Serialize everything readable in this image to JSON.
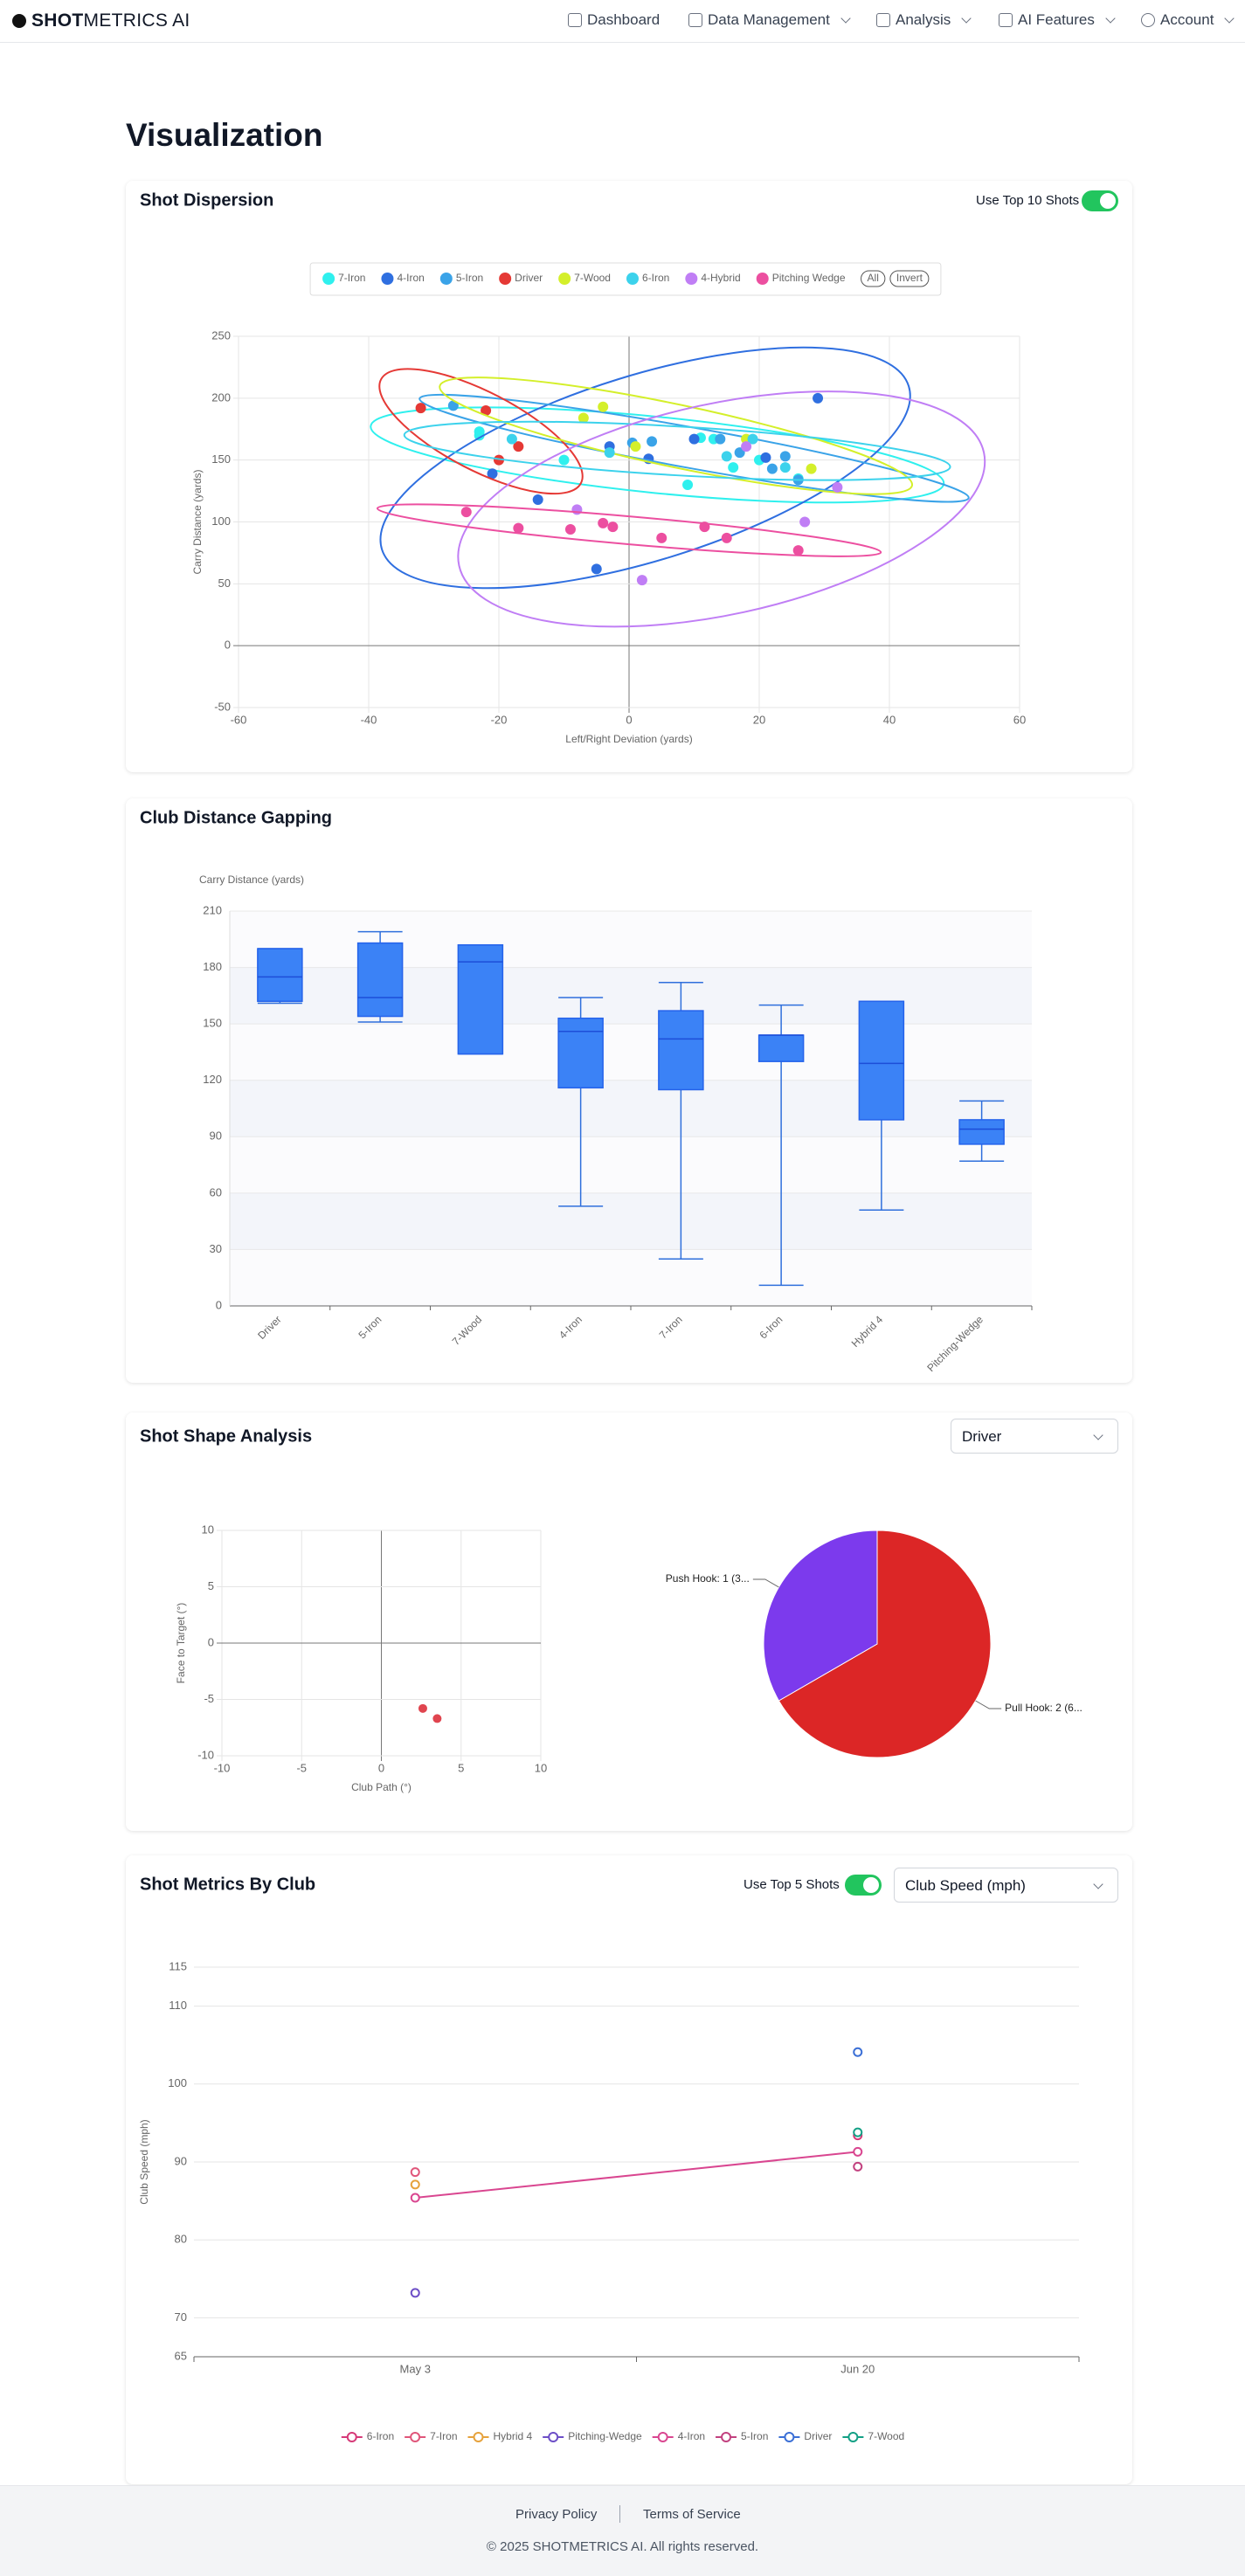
{
  "nav": {
    "brand_bold": "SHOT",
    "brand_rest": "METRICS AI",
    "items": [
      "Dashboard",
      "Data Management",
      "Analysis",
      "AI Features",
      "Account"
    ]
  },
  "page_title": "Visualization",
  "controls": {
    "top10": "Use Top 10 Shots",
    "legend_all": "All",
    "legend_invert": "Invert",
    "club_select": "Driver",
    "top5": "Use Top 5 Shots",
    "metric_select": "Club Speed (mph)"
  },
  "chart_data": [
    {
      "type": "scatter",
      "title": "Shot Dispersion",
      "x_label": "Left/Right Deviation (yards)",
      "y_label": "Carry Distance (yards)",
      "xlim": [
        -60,
        60
      ],
      "xticks": [
        -60,
        -40,
        -20,
        0,
        20,
        40,
        60
      ],
      "ylim": [
        -50,
        250
      ],
      "yticks": [
        -50,
        0,
        50,
        100,
        150,
        200,
        250
      ],
      "grid": true,
      "legend": "top",
      "ellipses": true,
      "series": [
        {
          "name": "7-Iron",
          "color": "#2ff0ee",
          "x": [
            -23,
            -23,
            -10,
            9,
            16,
            26,
            20,
            11,
            13
          ],
          "values": [
            170,
            173,
            150,
            130,
            144,
            135,
            150,
            168,
            167
          ]
        },
        {
          "name": "4-Iron",
          "color": "#2f6fe0",
          "x": [
            -21,
            -14,
            -5,
            -3,
            10,
            29,
            21,
            3
          ],
          "values": [
            139,
            118,
            62,
            161,
            167,
            200,
            152,
            151
          ]
        },
        {
          "name": "5-Iron",
          "color": "#3aa3e8",
          "x": [
            -27,
            0.5,
            14,
            17,
            22,
            24,
            26,
            3.5
          ],
          "values": [
            194,
            164,
            167,
            156,
            143,
            153,
            134,
            165
          ]
        },
        {
          "name": "Driver",
          "color": "#e53935",
          "x": [
            -32,
            -22,
            -17,
            -20
          ],
          "values": [
            192,
            190,
            161,
            150
          ]
        },
        {
          "name": "7-Wood",
          "color": "#d4ef2a",
          "x": [
            -7,
            -4,
            1,
            18,
            28
          ],
          "values": [
            184,
            193,
            161,
            167,
            143
          ]
        },
        {
          "name": "6-Iron",
          "color": "#3cd2ec",
          "x": [
            -18,
            -3,
            15,
            24,
            19
          ],
          "values": [
            167,
            156,
            153,
            144,
            167
          ]
        },
        {
          "name": "4-Hybrid",
          "color": "#c07ef5",
          "x": [
            -8,
            2,
            27,
            32,
            18
          ],
          "values": [
            110,
            53,
            100,
            128,
            161
          ]
        },
        {
          "name": "Pitching Wedge",
          "color": "#ec4fa0",
          "x": [
            -25,
            -17,
            -9,
            -4,
            -2.5,
            5,
            11.6,
            15,
            26
          ],
          "values": [
            108,
            95,
            94,
            99,
            96,
            87,
            96,
            87,
            77
          ]
        }
      ]
    },
    {
      "type": "box",
      "title": "Club Distance Gapping",
      "y_label": "Carry Distance (yards)",
      "categories": [
        "Driver",
        "5-Iron",
        "7-Wood",
        "4-Iron",
        "7-Iron",
        "6-Iron",
        "Hybrid 4",
        "Pitching-Wedge"
      ],
      "min": [
        161,
        151,
        134,
        53,
        25,
        11,
        51,
        77
      ],
      "q1": [
        162,
        154,
        134,
        116,
        115,
        130,
        99,
        86
      ],
      "median": [
        175,
        164,
        183,
        146,
        142,
        144,
        129,
        94
      ],
      "q3": [
        190,
        193,
        192,
        153,
        157,
        144,
        162,
        99
      ],
      "max": [
        190,
        199,
        192,
        164,
        172,
        160,
        162,
        109
      ],
      "color": "#3b82f6",
      "ylim": [
        0,
        210
      ],
      "yticks": [
        0,
        30,
        60,
        90,
        120,
        150,
        180,
        210
      ],
      "grid": true
    },
    {
      "type": "scatter",
      "title": "Shot Shape Analysis",
      "x_label": "Club Path (°)",
      "y_label": "Face to Target (°)",
      "xlim": [
        -10,
        10
      ],
      "xticks": [
        -10,
        -5,
        0,
        5,
        10
      ],
      "ylim": [
        -10,
        10
      ],
      "yticks": [
        -10,
        -5,
        0,
        5,
        10
      ],
      "grid": true,
      "series": [
        {
          "color": "#e0454f",
          "x": [
            2.6,
            3.5
          ],
          "values": [
            -5.8,
            -6.7
          ]
        }
      ]
    },
    {
      "type": "pie",
      "values": [
        2,
        1
      ],
      "value_labels": [
        "Pull Hook: 2 (6...",
        "Push Hook: 1 (3..."
      ],
      "colors": [
        "#dc2626",
        "#7c3aed"
      ]
    },
    {
      "type": "line",
      "title": "Shot Metrics By Club",
      "y_label": "Club Speed (mph)",
      "categories": [
        "May 3",
        "Jun 20"
      ],
      "ylim": [
        65,
        115
      ],
      "yticks": [
        65,
        70,
        80,
        90,
        100,
        110,
        115
      ],
      "grid": true,
      "legend": "bottom",
      "series": [
        {
          "name": "6-Iron",
          "color": "#d63a78",
          "values": [
            null,
            93.4
          ]
        },
        {
          "name": "7-Iron",
          "color": "#e0567a",
          "values": [
            88.7,
            null
          ]
        },
        {
          "name": "Hybrid 4",
          "color": "#e6a23c",
          "values": [
            87.1,
            null
          ]
        },
        {
          "name": "Pitching-Wedge",
          "color": "#6d4fc7",
          "values": [
            73.2,
            null
          ]
        },
        {
          "name": "4-Iron",
          "color": "#d94690",
          "values": [
            85.4,
            91.3
          ]
        },
        {
          "name": "5-Iron",
          "color": "#c2417f",
          "values": [
            null,
            89.4
          ]
        },
        {
          "name": "Driver",
          "color": "#3b6fd6",
          "values": [
            null,
            104.1
          ]
        },
        {
          "name": "7-Wood",
          "color": "#13a085",
          "values": [
            null,
            93.8
          ]
        }
      ]
    }
  ],
  "footer": {
    "links": [
      "Privacy Policy",
      "Terms of Service"
    ],
    "copyright": "© 2025 SHOTMETRICS AI. All rights reserved."
  }
}
